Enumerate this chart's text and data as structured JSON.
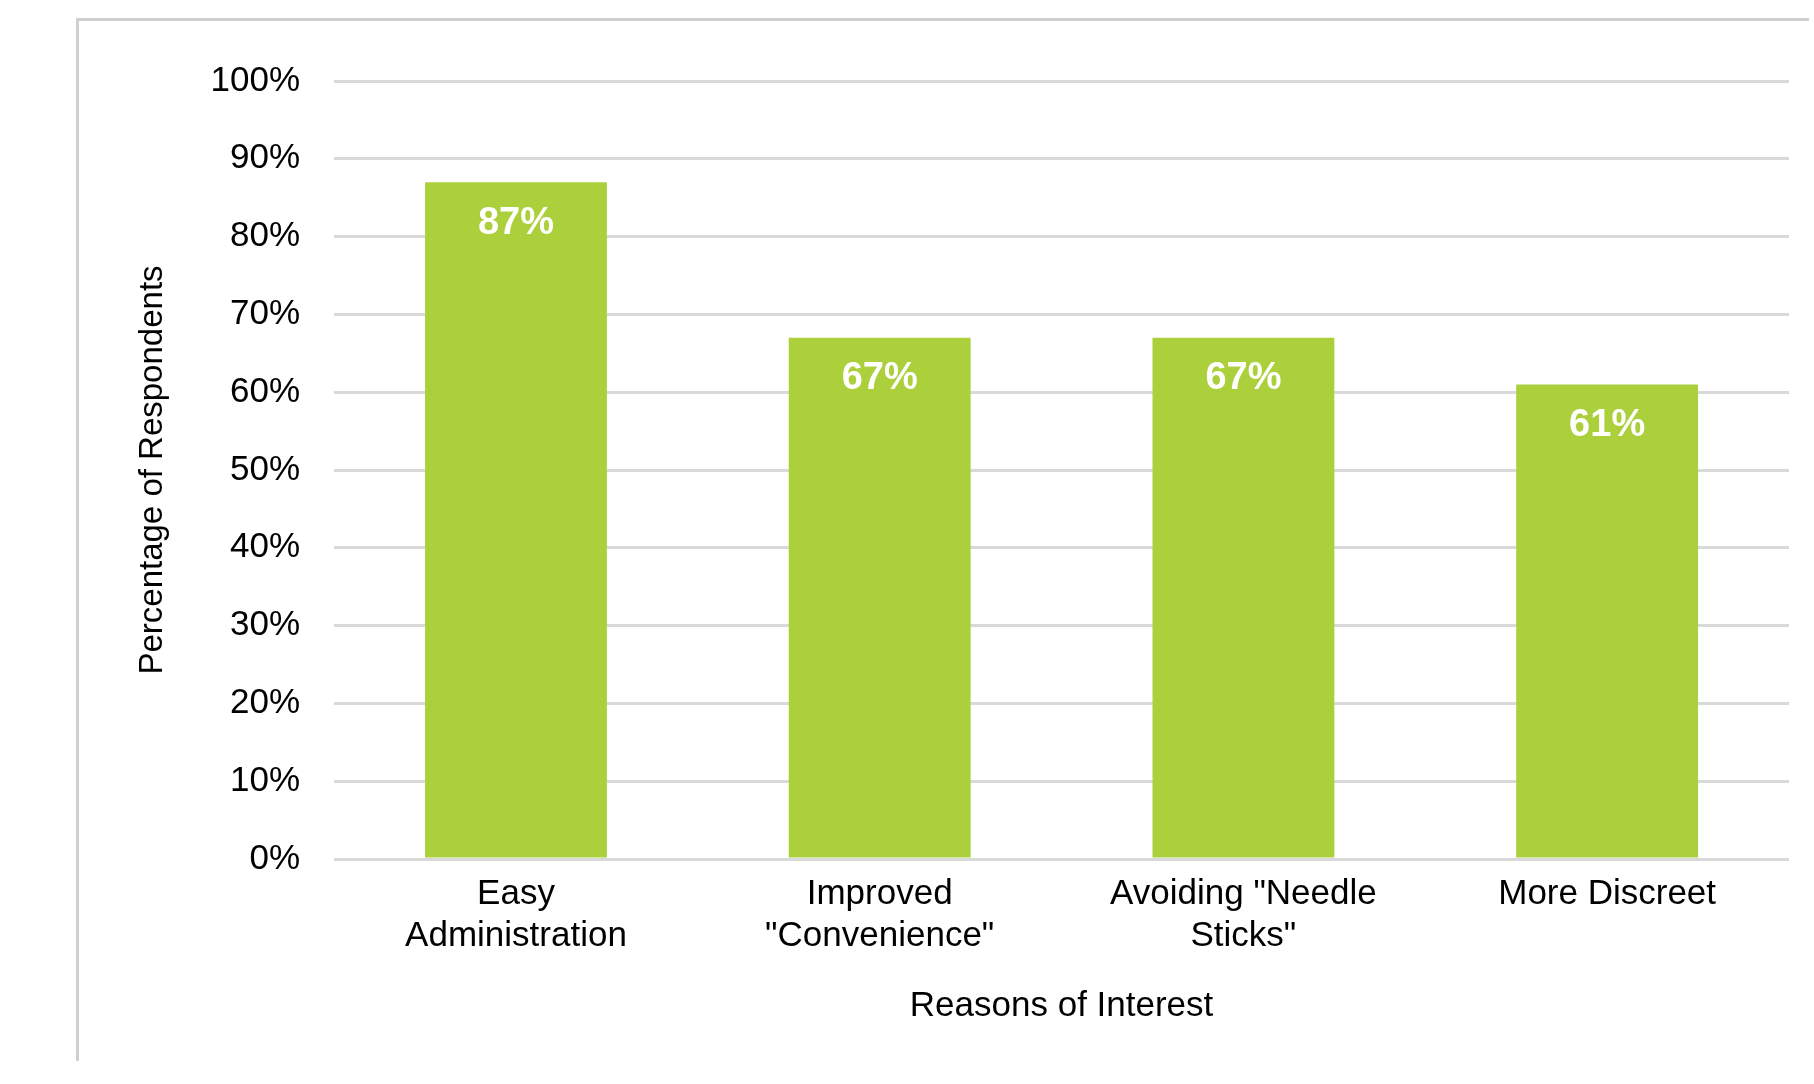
{
  "chart_data": {
    "type": "bar",
    "xlabel": "Reasons of Interest",
    "ylabel": "Percentage of Respondents",
    "categories": [
      "Easy Administration",
      "Improved \"Convenience\"",
      "Avoiding \"Needle Sticks\"",
      "More Discreet"
    ],
    "values": [
      87,
      67,
      67,
      61
    ],
    "value_labels": [
      "87%",
      "67%",
      "67%",
      "61%"
    ],
    "color": "#acd03b",
    "ylim": [
      0,
      100
    ],
    "yticks": [
      {
        "value": 0,
        "label": "0%"
      },
      {
        "value": 10,
        "label": "10%"
      },
      {
        "value": 20,
        "label": "20%"
      },
      {
        "value": 30,
        "label": "30%"
      },
      {
        "value": 40,
        "label": "40%"
      },
      {
        "value": 50,
        "label": "50%"
      },
      {
        "value": 60,
        "label": "60%"
      },
      {
        "value": 70,
        "label": "70%"
      },
      {
        "value": 80,
        "label": "80%"
      },
      {
        "value": 90,
        "label": "90%"
      },
      {
        "value": 100,
        "label": "100%"
      }
    ],
    "grid": "y",
    "legend": false
  }
}
